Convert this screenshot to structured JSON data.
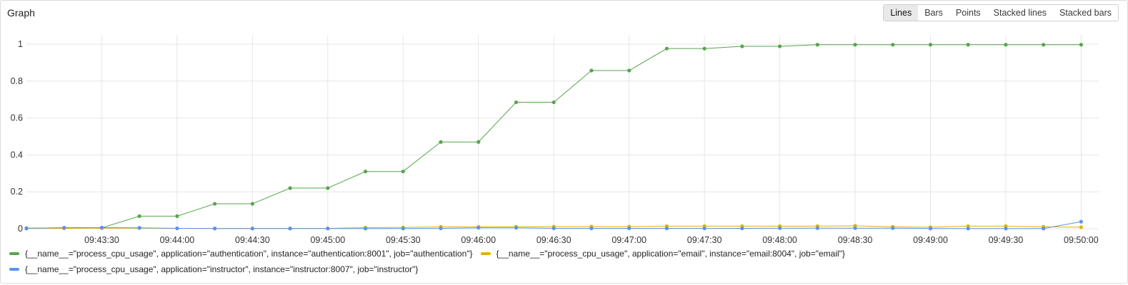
{
  "panel": {
    "title": "Graph"
  },
  "display_modes": {
    "options": [
      "Lines",
      "Bars",
      "Points",
      "Stacked lines",
      "Stacked bars"
    ],
    "selected": "Lines"
  },
  "chart_data": {
    "type": "line",
    "x_format": "HH:MM:SS",
    "x": [
      "09:43:00",
      "09:43:15",
      "09:43:30",
      "09:43:45",
      "09:44:00",
      "09:44:15",
      "09:44:30",
      "09:44:45",
      "09:45:00",
      "09:45:15",
      "09:45:30",
      "09:45:45",
      "09:46:00",
      "09:46:15",
      "09:46:30",
      "09:46:45",
      "09:47:00",
      "09:47:15",
      "09:47:30",
      "09:47:45",
      "09:48:00",
      "09:48:15",
      "09:48:30",
      "09:48:45",
      "09:49:00",
      "09:49:15",
      "09:49:30",
      "09:49:45",
      "09:50:00"
    ],
    "x_ticks": [
      "09:43:30",
      "09:44:00",
      "09:44:30",
      "09:45:00",
      "09:45:30",
      "09:46:00",
      "09:46:30",
      "09:47:00",
      "09:47:30",
      "09:48:00",
      "09:48:30",
      "09:49:00",
      "09:49:30",
      "09:50:00"
    ],
    "x_range": [
      "09:43:00",
      "09:50:07"
    ],
    "y_ticks": [
      "0",
      "0.2",
      "0.4",
      "0.6",
      "0.8",
      "1"
    ],
    "ylim": [
      0,
      1.05
    ],
    "grid": true,
    "legend_position": "bottom",
    "series": [
      {
        "name": "{__name__=\"process_cpu_usage\", application=\"authentication\", instance=\"authentication:8001\", job=\"authentication\"}",
        "color": "#56a64b",
        "values": [
          0.003,
          0.004,
          0.005,
          0.068,
          0.068,
          0.135,
          0.135,
          0.22,
          0.22,
          0.31,
          0.31,
          0.47,
          0.47,
          0.685,
          0.685,
          0.857,
          0.857,
          0.976,
          0.976,
          0.988,
          0.988,
          0.997,
          0.997,
          0.997,
          0.997,
          0.997,
          0.997,
          0.997,
          0.997
        ]
      },
      {
        "name": "{__name__=\"process_cpu_usage\", application=\"email\", instance=\"email:8004\", job=\"email\"}",
        "color": "#e0b400",
        "values": [
          0.001,
          0.002,
          0.003,
          0.003,
          0.002,
          0.002,
          0.002,
          0.002,
          0.002,
          0.006,
          0.007,
          0.01,
          0.01,
          0.011,
          0.011,
          0.011,
          0.011,
          0.014,
          0.014,
          0.014,
          0.014,
          0.014,
          0.016,
          0.01,
          0.008,
          0.014,
          0.014,
          0.01,
          0.008
        ]
      },
      {
        "name": "{__name__=\"process_cpu_usage\", application=\"instructor\", instance=\"instructor:8007\", job=\"instructor\"}",
        "color": "#5794f2",
        "values": [
          0.002,
          0.006,
          0.006,
          0.005,
          0.002,
          0.001,
          0.001,
          0.001,
          0.001,
          0.001,
          0.001,
          0.002,
          0.005,
          0.005,
          0.002,
          0.002,
          0.002,
          0.002,
          0.002,
          0.002,
          0.003,
          0.003,
          0.003,
          0.003,
          0.001,
          0.001,
          0.001,
          0.001,
          0.038
        ]
      }
    ]
  }
}
